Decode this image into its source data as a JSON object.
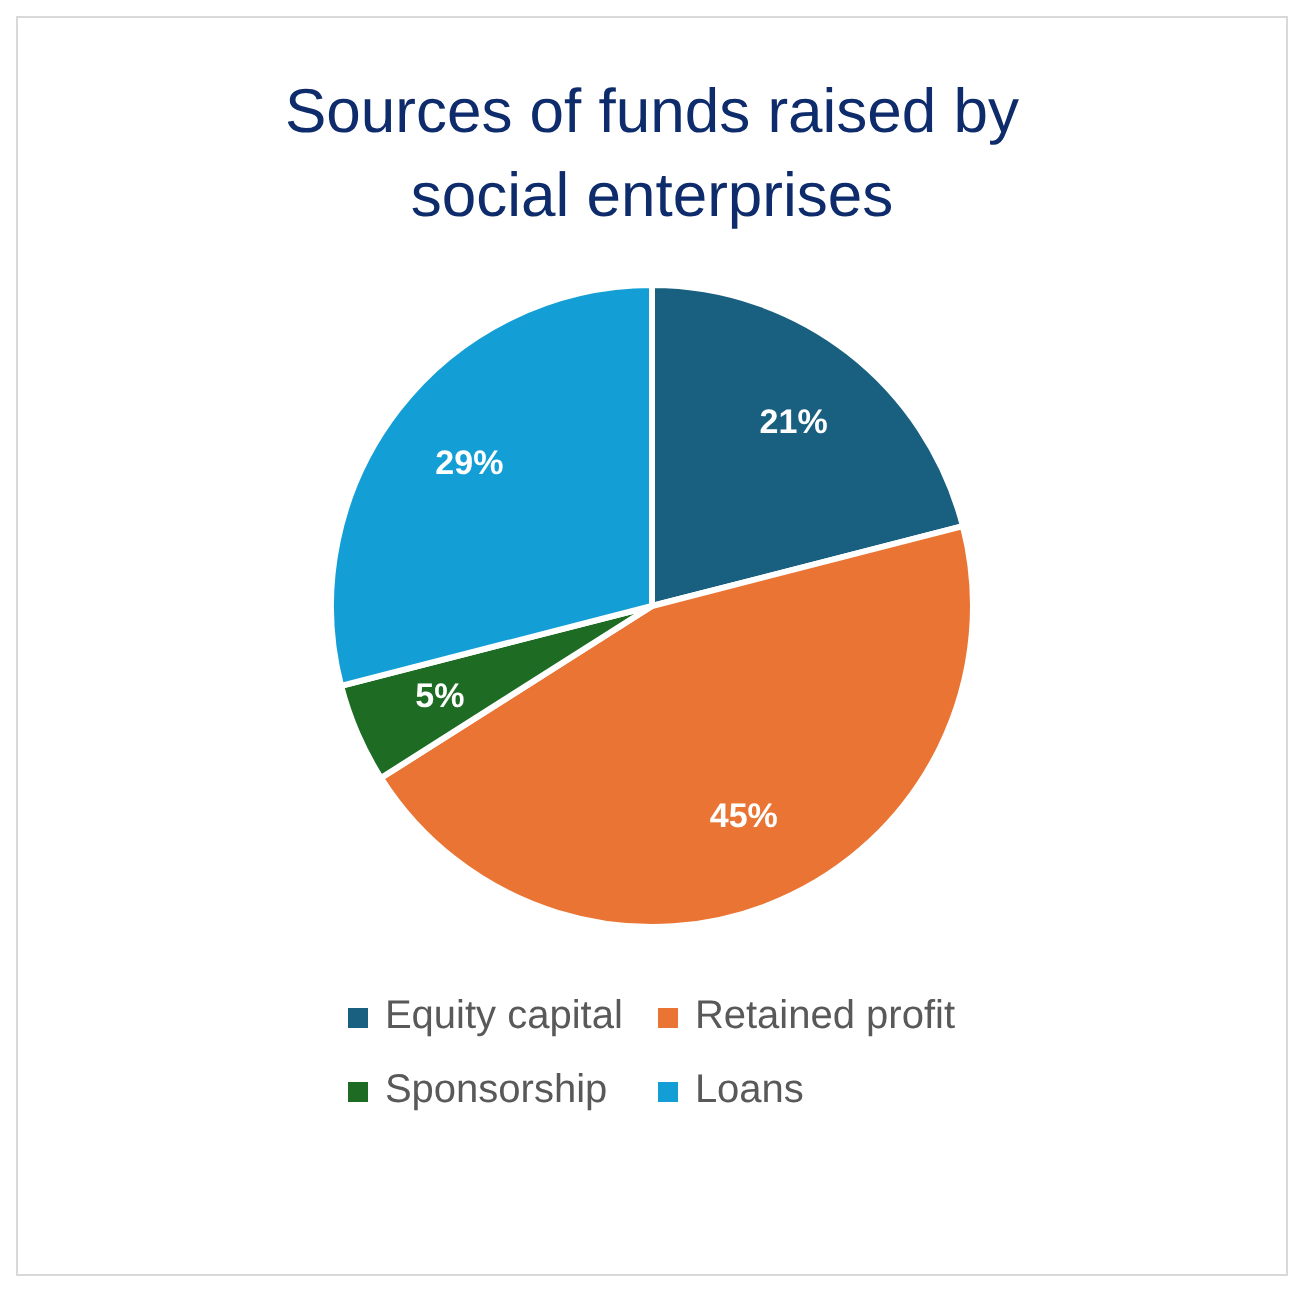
{
  "chart_data": {
    "type": "pie",
    "title": "Sources of funds raised by social enterprises",
    "categories": [
      "Equity capital",
      "Retained profit",
      "Sponsorship",
      "Loans"
    ],
    "values": [
      21,
      45,
      5,
      29
    ],
    "colors": [
      "#195f80",
      "#ea7433",
      "#1e6b24",
      "#139fd6"
    ],
    "value_labels": [
      "21%",
      "45%",
      "5%",
      "29%"
    ],
    "legend": "bottom"
  }
}
